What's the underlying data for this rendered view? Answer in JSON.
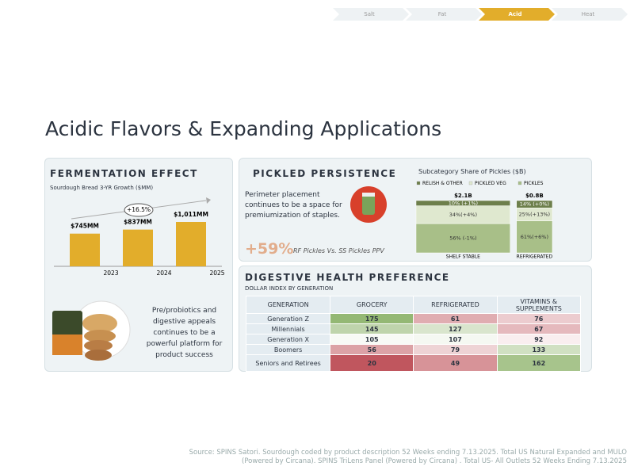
{
  "nav": {
    "steps": [
      "Salt",
      "Fat",
      "Acid",
      "Heat"
    ],
    "active": 2
  },
  "title": "Acidic Flavors & Expanding Applications",
  "chart_data": [
    {
      "type": "bar",
      "title": "FERMENTATION EFFECT",
      "subtitle": "Sourdough Bread 3-YR Growth ($MM)",
      "categories": [
        "2023",
        "2024",
        "2025"
      ],
      "values": [
        745,
        837,
        1011
      ],
      "value_labels": [
        "$745MM",
        "$837MM",
        "$1,011MM"
      ],
      "annotation": "+16.5%",
      "color": "#e2ad2b"
    },
    {
      "type": "marimekko",
      "title": "Subcategory Share of Pickles ($B)",
      "categories": [
        "SHELF STABLE",
        "REFRIGERATED"
      ],
      "totals": [
        2.1,
        0.8
      ],
      "total_labels": [
        "$2.1B",
        "$0.8B"
      ],
      "series": [
        {
          "name": "RELISH & OTHER",
          "color": "#6d7f4b",
          "values": [
            10,
            14
          ],
          "value_labels": [
            "10% (+1%)",
            "14% (+0%)"
          ]
        },
        {
          "name": "PICKLED VEG",
          "color": "#dfe8cf",
          "values": [
            34,
            25
          ],
          "value_labels": [
            "34%(+4%)",
            "25%(+13%)"
          ]
        },
        {
          "name": "PICKLES",
          "color": "#a8bf88",
          "values": [
            56,
            61
          ],
          "value_labels": [
            "56% (-1%)",
            "61%(+6%)"
          ]
        }
      ]
    }
  ],
  "fermentation": {
    "body": "Pre/probiotics and digestive appeals continues to be a powerful platform for product success"
  },
  "pickled": {
    "title": "PICKLED PERSISTENCE",
    "body": "Perimeter placement continues to be a space for premiumization of staples.",
    "stat": "+59%",
    "stat_caption": "RF Pickles Vs. SS Pickles PPV"
  },
  "digestive": {
    "title": "DIGESTIVE HEALTH PREFERENCE",
    "subtitle": "DOLLAR INDEX BY GENERATION",
    "columns": [
      "GENERATION",
      "GROCERY",
      "REFRIGERATED",
      "VITAMINS & SUPPLEMENTS"
    ],
    "rows": [
      [
        "Generation Z",
        175,
        61,
        76
      ],
      [
        "Millennials",
        145,
        127,
        67
      ],
      [
        "Generation X",
        105,
        107,
        92
      ],
      [
        "Boomers",
        56,
        79,
        133
      ],
      [
        "Seniors and Retirees",
        20,
        49,
        162
      ]
    ]
  },
  "source": "Source: SPINS Satori. Sourdough coded by product description 52 Weeks ending 7.13.2025. Total US Natural Expanded and MULO (Powered by Circana). SPINS TriLens Panel (Powered by Circana) . Total US- All Outlets 52 Weeks Ending 7.13.2025"
}
